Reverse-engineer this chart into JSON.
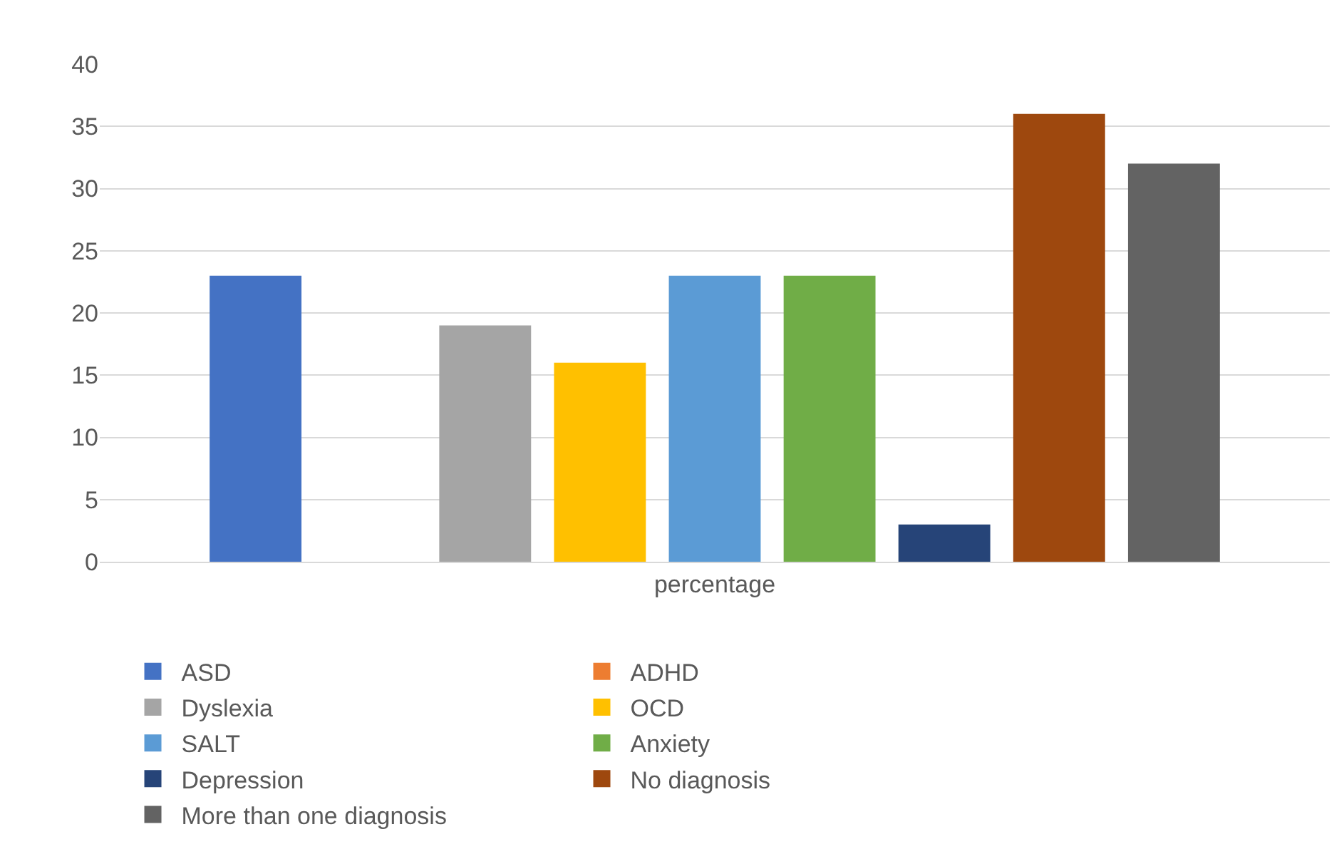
{
  "chart_data": {
    "type": "bar",
    "categories": [
      "percentage"
    ],
    "series": [
      {
        "name": "ASD",
        "color": "#4472c4",
        "values": [
          23
        ]
      },
      {
        "name": "ADHD",
        "color": "#ed7d31",
        "values": [
          0
        ]
      },
      {
        "name": "Dyslexia",
        "color": "#a5a5a5",
        "values": [
          19
        ]
      },
      {
        "name": "OCD",
        "color": "#ffc000",
        "values": [
          16
        ]
      },
      {
        "name": "SALT",
        "color": "#5b9bd5",
        "values": [
          23
        ]
      },
      {
        "name": "Anxiety",
        "color": "#70ad47",
        "values": [
          23
        ]
      },
      {
        "name": "Depression",
        "color": "#264478",
        "values": [
          3
        ]
      },
      {
        "name": "No diagnosis",
        "color": "#9e480e",
        "values": [
          36
        ]
      },
      {
        "name": "More than one diagnosis",
        "color": "#636363",
        "values": [
          32
        ]
      }
    ],
    "ylim": [
      0,
      40
    ],
    "yticks": [
      0,
      5,
      10,
      15,
      20,
      25,
      30,
      35,
      40
    ],
    "grid": "y",
    "legend": "bottom"
  }
}
